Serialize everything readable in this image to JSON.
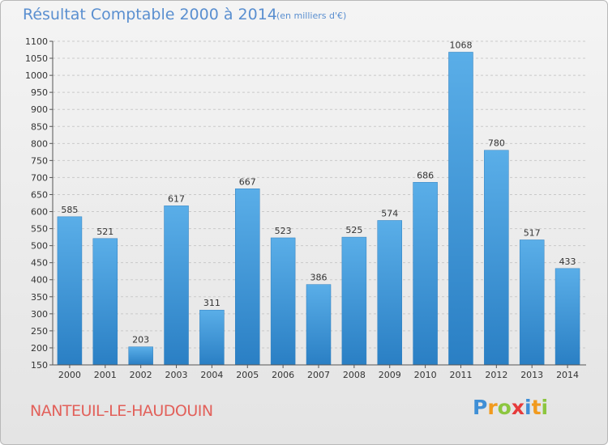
{
  "title": "Résultat Comptable 2000 à 2014",
  "subtitle": "(en milliers d'€)",
  "commune": "NANTEUIL-LE-HAUDOUIN",
  "logo": {
    "letters": [
      "P",
      "r",
      "o",
      "x",
      "i",
      "t",
      "i"
    ],
    "colors": [
      "#3f8fd6",
      "#f19a1e",
      "#8cc63f",
      "#e63b3b",
      "#3f8fd6",
      "#f19a1e",
      "#8cc63f"
    ]
  },
  "colors": {
    "bar_top": "#5aaee8",
    "bar_bottom": "#2a7fc4",
    "title": "#5a8fd0",
    "commune": "#e2605a"
  },
  "chart_data": {
    "type": "bar",
    "title": "Résultat Comptable 2000 à 2014",
    "subtitle": "(en milliers d'€)",
    "categories": [
      "2000",
      "2001",
      "2002",
      "2003",
      "2004",
      "2005",
      "2006",
      "2007",
      "2008",
      "2009",
      "2010",
      "2011",
      "2012",
      "2013",
      "2014"
    ],
    "values": [
      585,
      521,
      203,
      617,
      311,
      667,
      523,
      386,
      525,
      574,
      686,
      1068,
      780,
      517,
      433
    ],
    "ylim": [
      150,
      1100
    ],
    "yticks": [
      150,
      200,
      250,
      300,
      350,
      400,
      450,
      500,
      550,
      600,
      650,
      700,
      750,
      800,
      850,
      900,
      950,
      1000,
      1050,
      1100
    ],
    "grid": true,
    "data_labels": true
  }
}
